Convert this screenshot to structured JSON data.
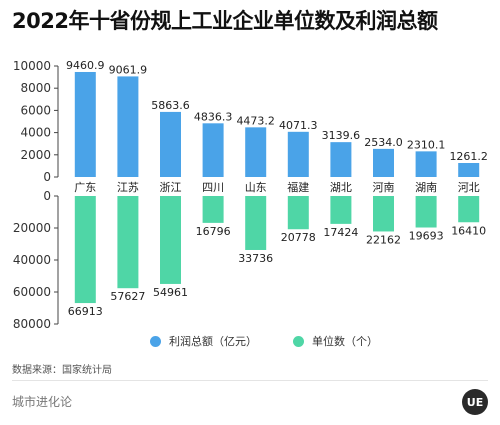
{
  "title": "2022年十省份规上工业企业单位数及利润总额",
  "legend": {
    "profit_label": "利润总额（亿元）",
    "units_label": "单位数（个）"
  },
  "source": "数据来源：国家统计局",
  "brand": "城市进化论",
  "logo_text": "UE",
  "colors": {
    "profit": "#4aa3e8",
    "units": "#4fd6a6",
    "axis": "#444444",
    "grid": "#e6e6e6"
  },
  "chart_data": {
    "type": "bar",
    "categories": [
      "广东",
      "江苏",
      "浙江",
      "四川",
      "山东",
      "福建",
      "湖北",
      "河南",
      "湖南",
      "河北"
    ],
    "series": [
      {
        "name": "利润总额（亿元）",
        "values": [
          9460.9,
          9061.9,
          5863.6,
          4836.3,
          4473.2,
          4071.3,
          3139.6,
          2534.0,
          2310.1,
          1261.2
        ]
      },
      {
        "name": "单位数（个）",
        "values": [
          66913,
          57627,
          54961,
          16796,
          33736,
          20778,
          17424,
          22162,
          19693,
          16410
        ]
      }
    ],
    "value_labels": {
      "profit": [
        "9460.9",
        "9061.9",
        "5863.6",
        "4836.3",
        "4473.2",
        "4071.3",
        "3139.6",
        "2534.0",
        "2310.1",
        "1261.2"
      ],
      "units": [
        "66913",
        "57627",
        "54961",
        "16796",
        "33736",
        "20778",
        "17424",
        "22162",
        "19693",
        "16410"
      ]
    },
    "top_axis": {
      "ylim": [
        0,
        10000
      ],
      "ticks": [
        "0",
        "2000",
        "4000",
        "6000",
        "8000",
        "10000"
      ]
    },
    "bottom_axis": {
      "ylim": [
        0,
        80000
      ],
      "ticks": [
        "0",
        "20000",
        "40000",
        "60000",
        "80000"
      ]
    },
    "grid": false,
    "legend_position": "bottom-center"
  }
}
